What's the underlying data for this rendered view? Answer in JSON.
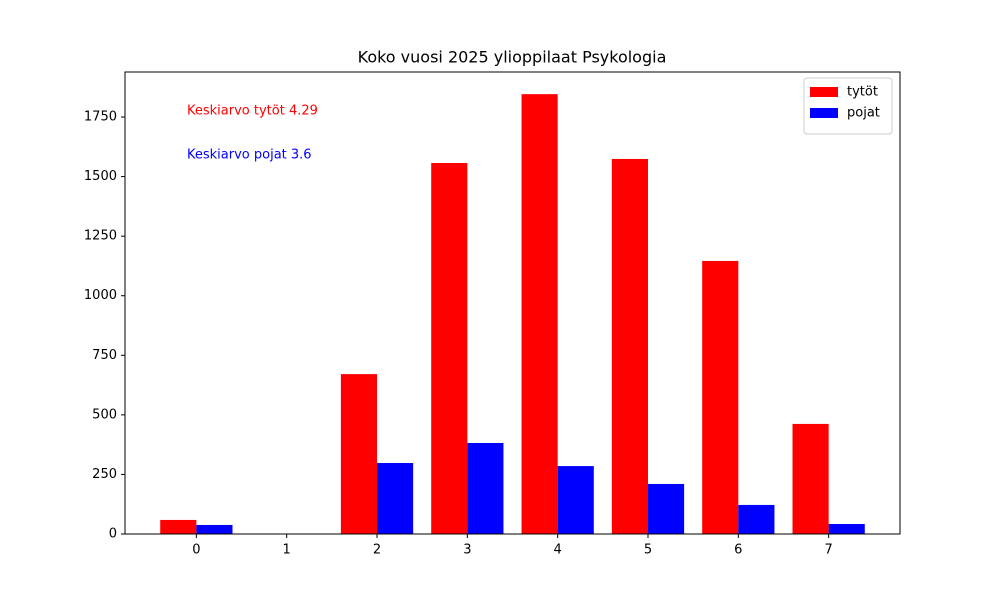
{
  "chart_data": {
    "type": "bar",
    "title": "Koko vuosi 2025 ylioppilaat Psykologia",
    "x": [
      0,
      1,
      2,
      3,
      4,
      5,
      6,
      7
    ],
    "series": [
      {
        "name": "tytöt",
        "color": "#ff0000",
        "values": [
          59,
          0,
          671,
          1557,
          1846,
          1574,
          1146,
          462
        ]
      },
      {
        "name": "pojat",
        "color": "#0000ff",
        "values": [
          38,
          0,
          298,
          382,
          285,
          210,
          122,
          42
        ]
      }
    ],
    "annotations": [
      {
        "text": "Keskiarvo tytöt 4.29",
        "color": "#ff0000"
      },
      {
        "text": "Keskiarvo pojat 3.6",
        "color": "#0000ff"
      }
    ],
    "xlim": [
      -0.79,
      7.79
    ],
    "xticks": [
      0,
      1,
      2,
      3,
      4,
      5,
      6,
      7
    ],
    "ylim": [
      0,
      1939
    ],
    "yticks": [
      0,
      250,
      500,
      750,
      1000,
      1250,
      1500,
      1750
    ],
    "grid": false,
    "legend": "upper right"
  }
}
